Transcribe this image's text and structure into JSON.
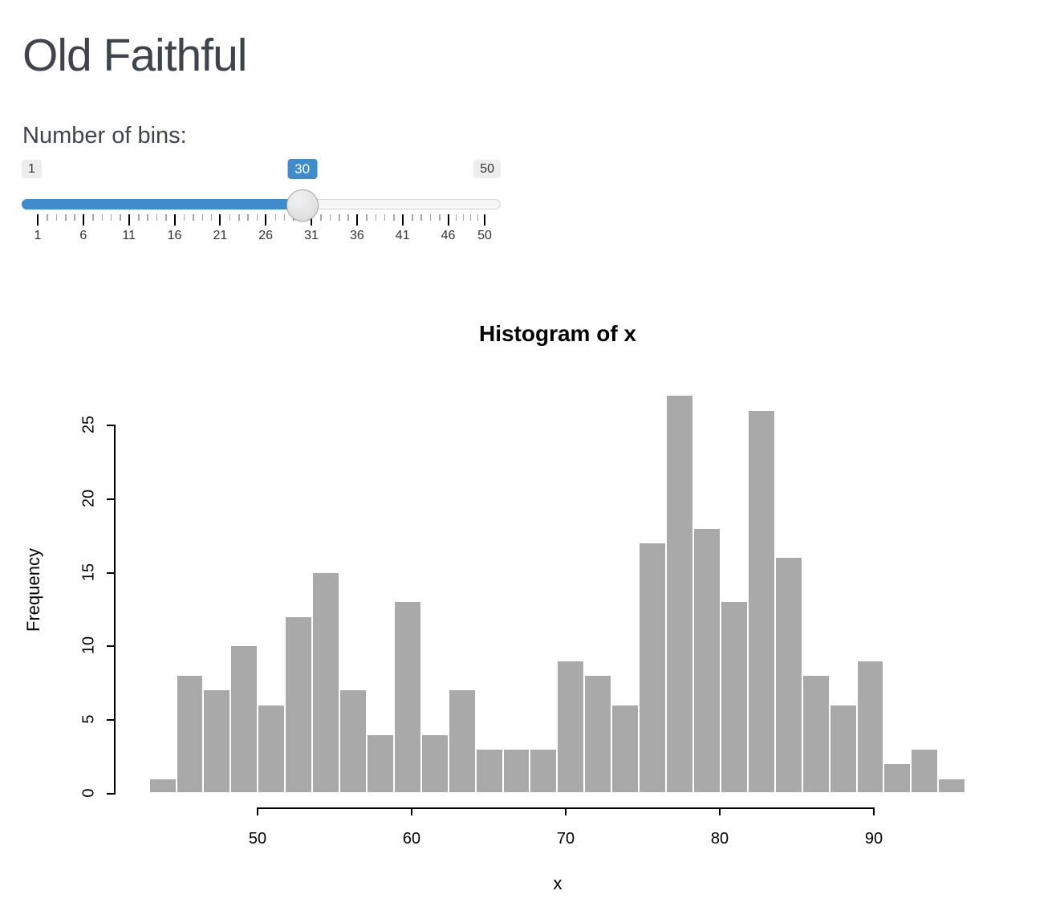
{
  "header": {
    "title": "Old Faithful"
  },
  "slider": {
    "label": "Number of bins:",
    "min": 1,
    "max": 50,
    "value": 30,
    "min_label": "1",
    "max_label": "50",
    "value_label": "30",
    "major_tick_values": [
      1,
      6,
      11,
      16,
      21,
      26,
      31,
      36,
      41,
      46,
      50
    ],
    "minor_ticks_per_interval": 4,
    "accent_color": "#428bca",
    "handle_color": "#e6e6e6",
    "track_color": "#f6f6f6"
  },
  "chart_data": {
    "type": "bar",
    "subtype": "histogram",
    "title": "Histogram of x",
    "xlabel": "x",
    "ylabel": "Frequency",
    "x_range": [
      43,
      96
    ],
    "n_bins": 30,
    "values": [
      1,
      8,
      7,
      10,
      6,
      12,
      15,
      7,
      4,
      13,
      4,
      7,
      3,
      3,
      3,
      9,
      8,
      6,
      17,
      27,
      18,
      13,
      26,
      16,
      8,
      6,
      9,
      2,
      3,
      1
    ],
    "x_ticks": [
      50,
      60,
      70,
      80,
      90
    ],
    "y_ticks": [
      0,
      5,
      10,
      15,
      20,
      25
    ],
    "xlim": [
      50,
      90
    ],
    "ylim": [
      0,
      25
    ],
    "grid": false,
    "legend": false,
    "bar_color": "#a9a9a9",
    "bar_border_color": "#ffffff",
    "total_count": 272
  }
}
